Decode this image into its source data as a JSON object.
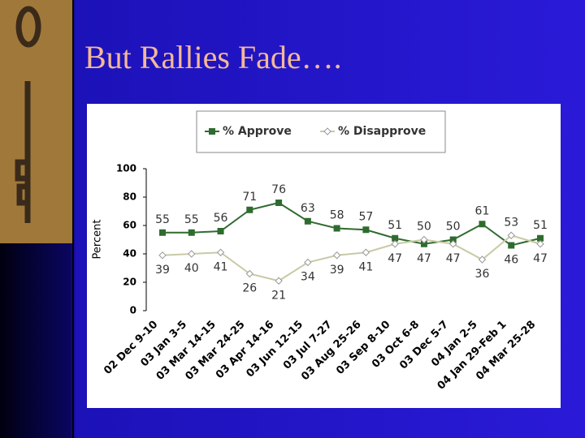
{
  "chart_data": {
    "type": "line",
    "title": "But Rallies Fade….",
    "ylabel": "Percent",
    "categories": [
      "02 Dec 9-10",
      "03 Jan 3-5",
      "03 Mar 14-15",
      "03 Mar 24-25",
      "03 Apr 14-16",
      "03 Jun 12-15",
      "03 Jul 7-27",
      "03 Aug 25-26",
      "03 Sep 8-10",
      "03 Oct 6-8",
      "03 Dec 5-7",
      "04 Jan 2-5",
      "04 Jan 29-Feb 1",
      "04 Mar 25-28"
    ],
    "series": [
      {
        "name": "% Approve",
        "color": "#2f6b2f",
        "values": [
          55,
          55,
          56,
          71,
          76,
          63,
          58,
          57,
          51,
          47,
          50,
          61,
          46,
          51
        ]
      },
      {
        "name": "% Disapprove",
        "color": "#c9c9a6",
        "values": [
          39,
          40,
          41,
          26,
          21,
          34,
          39,
          41,
          47,
          50,
          47,
          36,
          53,
          47
        ]
      }
    ],
    "ylim": [
      0,
      100
    ],
    "yticks": [
      0,
      20,
      40,
      60,
      80,
      100
    ],
    "grid": false,
    "legend": "top"
  }
}
